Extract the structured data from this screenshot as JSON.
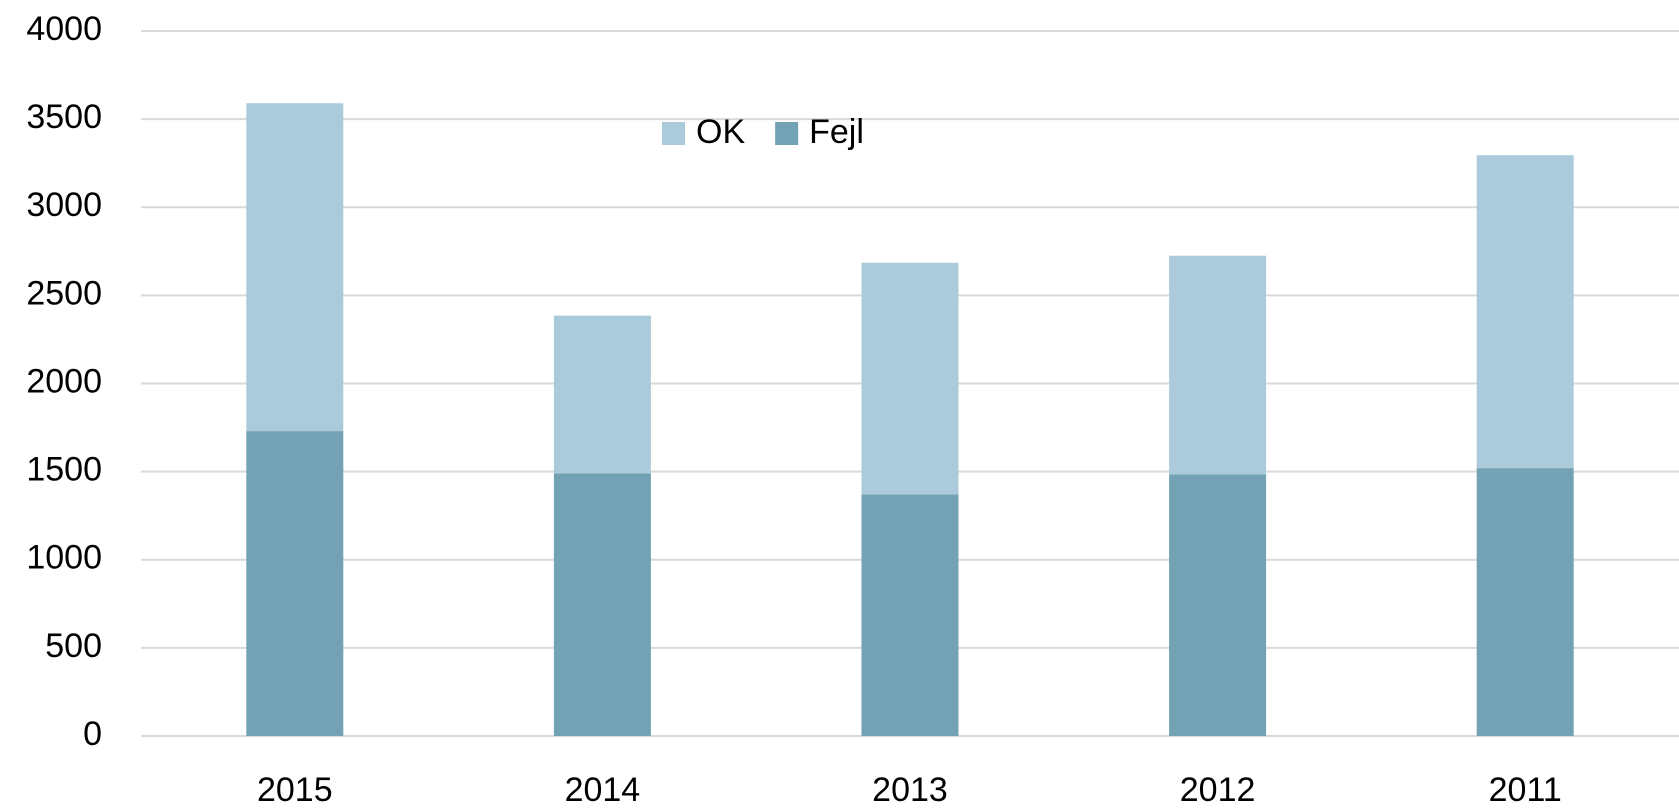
{
  "chart_data": {
    "type": "stacked_bar",
    "categories": [
      "2015",
      "2014",
      "2013",
      "2012",
      "2011"
    ],
    "series": [
      {
        "name": "OK",
        "color": "#abcbda",
        "values": [
          1860,
          895,
          1315,
          1240,
          1775
        ]
      },
      {
        "name": "Fejl",
        "color": "#73a2b5",
        "values": [
          1730,
          1490,
          1370,
          1485,
          1520
        ]
      }
    ],
    "ylim": [
      0,
      4000
    ],
    "yticks": [
      0,
      500,
      1000,
      1500,
      2000,
      2500,
      3000,
      3500,
      4000
    ],
    "grid": true,
    "legend": "top"
  }
}
